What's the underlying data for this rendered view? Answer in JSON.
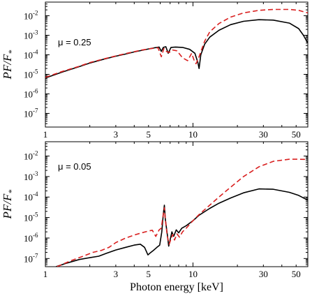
{
  "chart_data": [
    {
      "type": "line",
      "annotation": "μ = 0.25",
      "ylabel": "PF/F*",
      "xlabel": "",
      "xscale": "log",
      "yscale": "log",
      "xlim": [
        1,
        60
      ],
      "ylim": [
        2e-08,
        0.05
      ],
      "xticks": [
        1,
        3,
        5,
        10,
        30,
        50
      ],
      "xtick_labels": [
        "1",
        "3",
        "5",
        "10",
        "30",
        "50"
      ],
      "yticks": [
        1e-07,
        1e-06,
        1e-05,
        0.0001,
        0.001,
        0.01
      ],
      "ytick_labels": [
        [
          "10",
          "-7"
        ],
        [
          "10",
          "-6"
        ],
        [
          "10",
          "-5"
        ],
        [
          "10",
          "-4"
        ],
        [
          "10",
          "-3"
        ],
        [
          "10",
          "-2"
        ]
      ],
      "series": [
        {
          "color": "#000000",
          "dash": "solid",
          "points": [
            [
              1,
              6.5e-06
            ],
            [
              1.3,
              1.3e-05
            ],
            [
              1.7,
              2.5e-05
            ],
            [
              2,
              3.8e-05
            ],
            [
              2.5,
              6e-05
            ],
            [
              3,
              8.5e-05
            ],
            [
              3.5,
              0.00011
            ],
            [
              4,
              0.00014
            ],
            [
              4.5,
              0.00017
            ],
            [
              5,
              0.0002
            ],
            [
              5.5,
              0.00023
            ],
            [
              5.9,
              0.00025
            ],
            [
              6.1,
              0.00015
            ],
            [
              6.3,
              0.00024
            ],
            [
              6.55,
              0.00026
            ],
            [
              6.8,
              0.00012
            ],
            [
              7.1,
              0.00024
            ],
            [
              7.6,
              0.00025
            ],
            [
              8.5,
              0.00024
            ],
            [
              9.5,
              0.00019
            ],
            [
              10.3,
              0.00012
            ],
            [
              10.8,
              4e-05
            ],
            [
              11,
              2e-05
            ],
            [
              11.3,
              0.0001
            ],
            [
              12,
              0.00035
            ],
            [
              13,
              0.0008
            ],
            [
              15,
              0.0018
            ],
            [
              18,
              0.0035
            ],
            [
              22,
              0.0052
            ],
            [
              28,
              0.0063
            ],
            [
              35,
              0.006
            ],
            [
              45,
              0.0042
            ],
            [
              52,
              0.0022
            ],
            [
              56,
              0.001
            ],
            [
              60,
              0.0004
            ]
          ]
        },
        {
          "color": "#d92020",
          "dash": "dashed",
          "points": [
            [
              1,
              7e-06
            ],
            [
              1.3,
              1.4e-05
            ],
            [
              1.7,
              2.6e-05
            ],
            [
              2,
              4e-05
            ],
            [
              2.5,
              6.2e-05
            ],
            [
              3,
              8.8e-05
            ],
            [
              3.5,
              0.000115
            ],
            [
              4,
              0.000145
            ],
            [
              4.5,
              0.000175
            ],
            [
              5,
              0.0002
            ],
            [
              5.5,
              0.00022
            ],
            [
              5.8,
              0.00023
            ],
            [
              6.1,
              8e-05
            ],
            [
              6.35,
              0.00021
            ],
            [
              6.6,
              0.00015
            ],
            [
              6.9,
              0.00013
            ],
            [
              7.2,
              0.00018
            ],
            [
              7.8,
              0.00016
            ],
            [
              8.5,
              7e-05
            ],
            [
              9.2,
              5e-05
            ],
            [
              9.8,
              0.00012
            ],
            [
              10.2,
              5e-05
            ],
            [
              10.5,
              3.5e-05
            ],
            [
              11,
              8e-05
            ],
            [
              12,
              0.0005
            ],
            [
              13,
              0.0015
            ],
            [
              15,
              0.004
            ],
            [
              18,
              0.0085
            ],
            [
              22,
              0.014
            ],
            [
              28,
              0.019
            ],
            [
              35,
              0.021
            ],
            [
              45,
              0.021
            ],
            [
              52,
              0.019
            ],
            [
              60,
              0.014
            ]
          ]
        }
      ]
    },
    {
      "type": "line",
      "annotation": "μ = 0.05",
      "ylabel": "PF/F*",
      "xlabel": "Photon energy [keV]",
      "xscale": "log",
      "yscale": "log",
      "xlim": [
        1,
        60
      ],
      "ylim": [
        4e-08,
        0.05
      ],
      "xticks": [
        1,
        3,
        5,
        10,
        30,
        50
      ],
      "xtick_labels": [
        "1",
        "3",
        "5",
        "10",
        "30",
        "50"
      ],
      "yticks": [
        1e-07,
        1e-06,
        1e-05,
        0.0001,
        0.001,
        0.01
      ],
      "ytick_labels": [
        [
          "10",
          "-7"
        ],
        [
          "10",
          "-6"
        ],
        [
          "10",
          "-5"
        ],
        [
          "10",
          "-4"
        ],
        [
          "10",
          "-3"
        ],
        [
          "10",
          "-2"
        ]
      ],
      "series": [
        {
          "color": "#000000",
          "dash": "solid",
          "points": [
            [
              1.18,
              4e-08
            ],
            [
              1.4,
              6e-08
            ],
            [
              1.7,
              9e-08
            ],
            [
              2,
              1.1e-07
            ],
            [
              2.3,
              1.3e-07
            ],
            [
              2.6,
              1.8e-07
            ],
            [
              3,
              2.6e-07
            ],
            [
              3.5,
              3.5e-07
            ],
            [
              4,
              4.5e-07
            ],
            [
              4.4,
              5e-07
            ],
            [
              4.7,
              3.5e-07
            ],
            [
              4.95,
              1.5e-07
            ],
            [
              5.1,
              1.8e-07
            ],
            [
              5.4,
              2.5e-07
            ],
            [
              5.7,
              3.5e-07
            ],
            [
              5.95,
              4.5e-07
            ],
            [
              6.15,
              2e-06
            ],
            [
              6.3,
              1.5e-05
            ],
            [
              6.4,
              4e-05
            ],
            [
              6.5,
              8e-06
            ],
            [
              6.7,
              1.5e-06
            ],
            [
              6.85,
              4e-07
            ],
            [
              7,
              8e-07
            ],
            [
              7.2,
              2e-06
            ],
            [
              7.4,
              1.2e-06
            ],
            [
              7.7,
              2.5e-06
            ],
            [
              8,
              1.8e-06
            ],
            [
              8.4,
              3e-06
            ],
            [
              9,
              4e-06
            ],
            [
              10,
              7e-06
            ],
            [
              11,
              1.3e-05
            ],
            [
              13,
              2.8e-05
            ],
            [
              15,
              5e-05
            ],
            [
              18,
              9e-05
            ],
            [
              22,
              0.00016
            ],
            [
              28,
              0.00025
            ],
            [
              35,
              0.00024
            ],
            [
              45,
              0.00017
            ],
            [
              52,
              0.00012
            ],
            [
              60,
              7e-05
            ]
          ]
        },
        {
          "color": "#d92020",
          "dash": "dashed",
          "points": [
            [
              1.2,
              4e-08
            ],
            [
              1.5,
              8e-08
            ],
            [
              1.8,
              1.3e-07
            ],
            [
              2.1,
              2e-07
            ],
            [
              2.4,
              2.5e-07
            ],
            [
              2.7,
              3.5e-07
            ],
            [
              3,
              6e-07
            ],
            [
              3.5,
              1e-06
            ],
            [
              4,
              1.4e-06
            ],
            [
              4.5,
              1.8e-06
            ],
            [
              5,
              2.2e-06
            ],
            [
              5.3,
              2.4e-06
            ],
            [
              5.6,
              1.2e-06
            ],
            [
              5.9,
              2.5e-06
            ],
            [
              6.1,
              3e-06
            ],
            [
              6.3,
              1.5e-05
            ],
            [
              6.4,
              3e-05
            ],
            [
              6.5,
              8e-06
            ],
            [
              6.7,
              1.2e-06
            ],
            [
              6.9,
              5e-07
            ],
            [
              7.1,
              9e-07
            ],
            [
              7.3,
              1.5e-06
            ],
            [
              7.5,
              8e-07
            ],
            [
              7.8,
              1.6e-06
            ],
            [
              8.1,
              1.1e-06
            ],
            [
              8.5,
              2e-06
            ],
            [
              9,
              3e-06
            ],
            [
              10,
              7e-06
            ],
            [
              11,
              1.4e-05
            ],
            [
              13,
              4e-05
            ],
            [
              15,
              0.0001
            ],
            [
              18,
              0.0003
            ],
            [
              22,
              0.001
            ],
            [
              28,
              0.003
            ],
            [
              35,
              0.0055
            ],
            [
              45,
              0.007
            ],
            [
              52,
              0.007
            ],
            [
              60,
              0.0068
            ]
          ]
        }
      ]
    }
  ]
}
